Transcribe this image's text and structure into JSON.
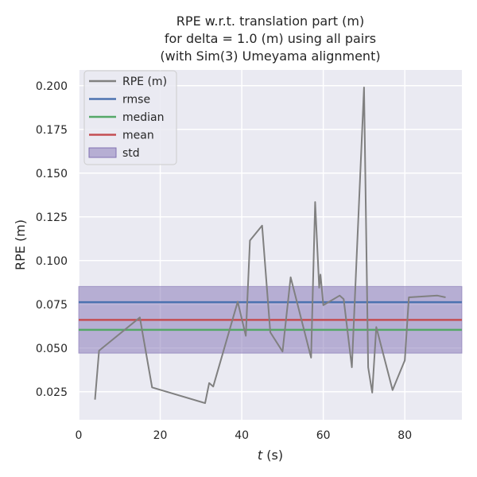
{
  "chart_data": {
    "type": "line",
    "title": [
      "RPE w.r.t. translation part (m)",
      "for delta = 1.0 (m) using all pairs",
      "(with Sim(3) Umeyama alignment)"
    ],
    "xlabel_var": "t",
    "xlabel_unit": " (s)",
    "ylabel": "RPE (m)",
    "xlim": [
      0,
      94
    ],
    "ylim": [
      0.009,
      0.209
    ],
    "xticks": [
      0,
      20,
      40,
      60,
      80
    ],
    "yticks": [
      0.025,
      0.05,
      0.075,
      0.1,
      0.125,
      0.15,
      0.175,
      0.2
    ],
    "ytick_labels": [
      "0.025",
      "0.050",
      "0.075",
      "0.100",
      "0.125",
      "0.150",
      "0.175",
      "0.200"
    ],
    "grid": true,
    "legend_position": "top-left",
    "series": [
      {
        "name": "RPE (m)",
        "color": "#808080",
        "x": [
          4,
          5,
          15,
          18,
          31,
          32,
          33,
          39,
          41,
          42,
          45,
          47,
          50,
          52,
          57,
          58,
          59,
          59.3,
          60,
          64,
          65,
          67,
          70,
          71,
          72,
          73,
          77,
          80,
          81,
          88,
          90
        ],
        "y": [
          0.0205,
          0.0485,
          0.0675,
          0.0275,
          0.0185,
          0.03,
          0.028,
          0.0765,
          0.057,
          0.1115,
          0.12,
          0.059,
          0.048,
          0.0905,
          0.0445,
          0.1335,
          0.0845,
          0.092,
          0.0745,
          0.08,
          0.078,
          0.039,
          0.199,
          0.039,
          0.0245,
          0.062,
          0.026,
          0.043,
          0.079,
          0.08,
          0.079
        ]
      }
    ],
    "stats": [
      {
        "name": "rmse",
        "value": 0.0762,
        "color": "#4c72b0"
      },
      {
        "name": "median",
        "value": 0.0604,
        "color": "#55a868"
      },
      {
        "name": "mean",
        "value": 0.0661,
        "color": "#c44e52"
      }
    ],
    "std_band": {
      "name": "std",
      "lower": 0.0471,
      "upper": 0.0852,
      "color": "#8172b3"
    }
  }
}
